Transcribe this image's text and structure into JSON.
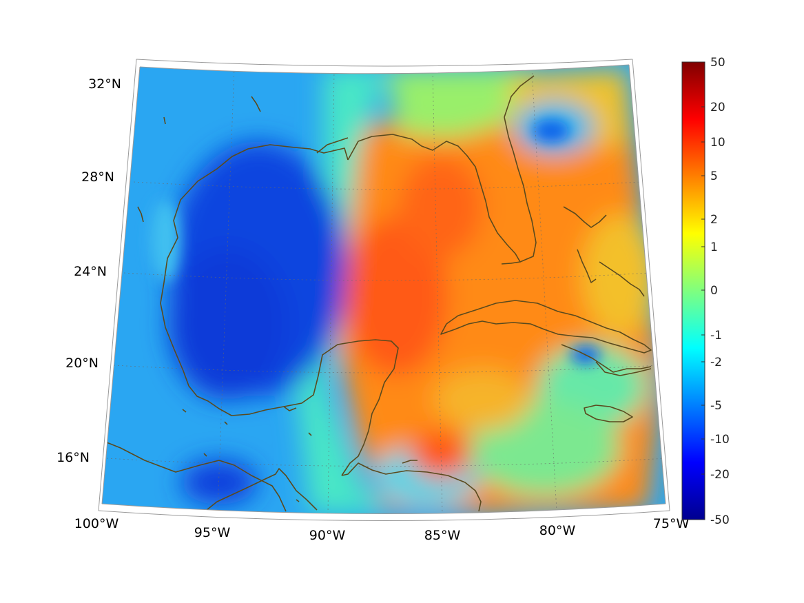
{
  "map": {
    "projection": "conic",
    "longitude_ticks": [
      "100°W",
      "95°W",
      "90°W",
      "85°W",
      "80°W",
      "75°W"
    ],
    "latitude_ticks": [
      "16°N",
      "20°N",
      "24°N",
      "28°N",
      "32°N"
    ],
    "coastline_color": "#5a4a1e",
    "gridlines": "dotted"
  },
  "colorbar": {
    "colormap": "jet",
    "ticks": [
      "50",
      "20",
      "10",
      "5",
      "2",
      "1",
      "0",
      "-1",
      "-2",
      "-5",
      "-10",
      "-20",
      "-50"
    ],
    "scale": "symmetric log-like"
  },
  "field_regions": {
    "gulf_west_center": "strongly negative (about -5 to -10)",
    "eastern_gulf_and_caribbean": "strongly positive (about 5 to 10)",
    "boundary_near_90W": "near zero (light cyan / green band)"
  }
}
